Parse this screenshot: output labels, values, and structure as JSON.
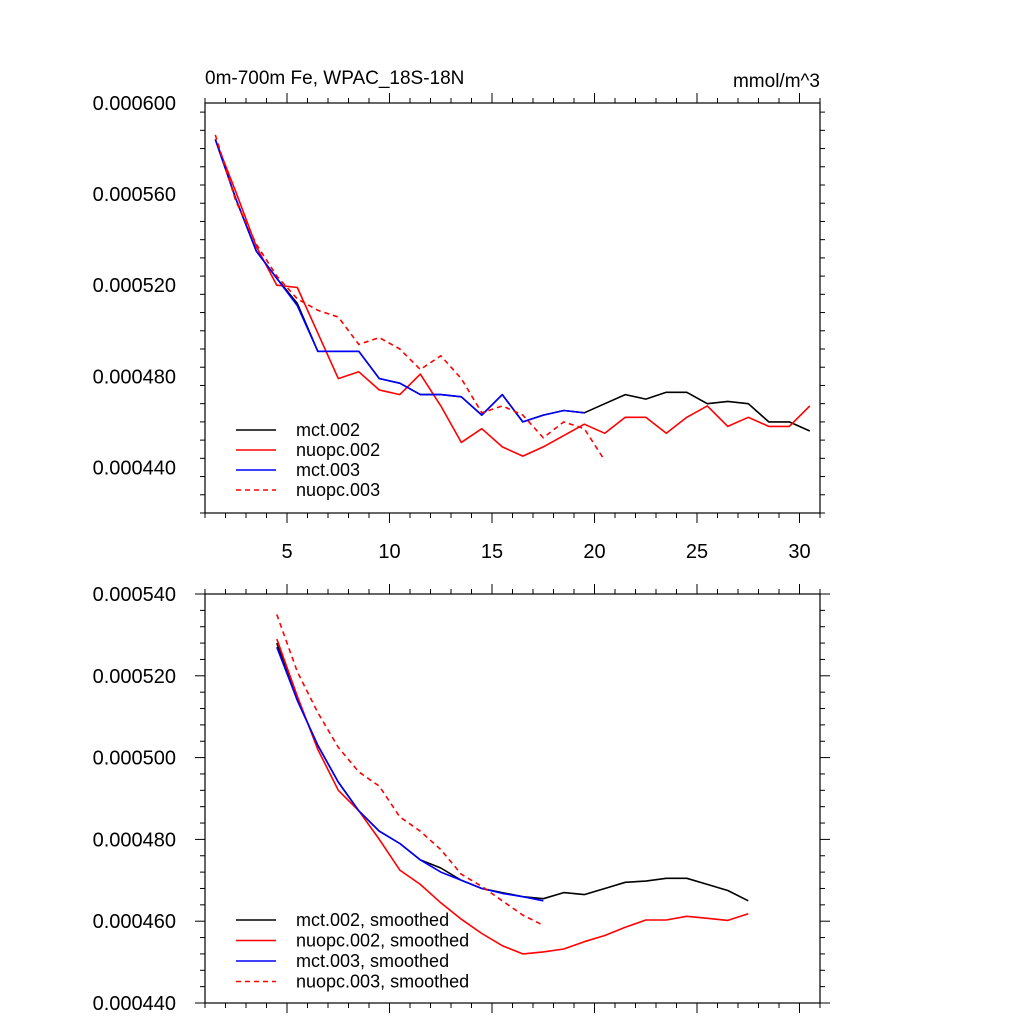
{
  "chart_data": [
    {
      "type": "line",
      "title": "0m-700m Fe, WPAC_18S-18N",
      "units": "mmol/m^3",
      "xlabel": "",
      "ylabel": "",
      "xlim": [
        1,
        31
      ],
      "ylim": [
        0.00042,
        0.0006
      ],
      "x_ticks": [
        5,
        10,
        15,
        20,
        25,
        30
      ],
      "x_tick_labels": [
        "5",
        "10",
        "15",
        "20",
        "25",
        "30"
      ],
      "y_ticks": [
        0.00044,
        0.00048,
        0.00052,
        0.00056,
        0.0006
      ],
      "y_tick_labels": [
        "0.000440",
        "0.000480",
        "0.000520",
        "0.000560",
        "0.000600"
      ],
      "legend_position": "bottom-left",
      "series": [
        {
          "name": "mct.002",
          "color": "#000000",
          "dash": "solid",
          "x": [
            1.5,
            2.5,
            3.5,
            4.5,
            5.5,
            6.5,
            7.5,
            8.5,
            9.5,
            10.5,
            11.5,
            12.5,
            13.5,
            14.5,
            15.5,
            16.5,
            17.5,
            18.5,
            19.5,
            20.5,
            21.5,
            22.5,
            23.5,
            24.5,
            25.5,
            26.5,
            27.5,
            28.5,
            29.5,
            30.5
          ],
          "y": [
            0.000584,
            0.000558,
            0.000535,
            0.000523,
            0.000512,
            0.000491,
            0.000491,
            0.000491,
            0.000479,
            0.000477,
            0.000472,
            0.000472,
            0.000471,
            0.000463,
            0.000472,
            0.00046,
            0.000463,
            0.000465,
            0.000464,
            0.000468,
            0.000472,
            0.00047,
            0.000473,
            0.000473,
            0.000468,
            0.000469,
            0.000468,
            0.00046,
            0.00046,
            0.000456
          ]
        },
        {
          "name": "nuopc.002",
          "color": "#ff0000",
          "dash": "solid",
          "x": [
            1.5,
            2.5,
            3.5,
            4.5,
            5.5,
            6.5,
            7.5,
            8.5,
            9.5,
            10.5,
            11.5,
            12.5,
            13.5,
            14.5,
            15.5,
            16.5,
            17.5,
            18.5,
            19.5,
            20.5,
            21.5,
            22.5,
            23.5,
            24.5,
            25.5,
            26.5,
            27.5,
            28.5,
            29.5,
            30.5
          ],
          "y": [
            0.000584,
            0.000561,
            0.000537,
            0.00052,
            0.000519,
            0.000499,
            0.000479,
            0.000482,
            0.000474,
            0.000472,
            0.000481,
            0.000467,
            0.000451,
            0.000457,
            0.000449,
            0.000445,
            0.000449,
            0.000454,
            0.000459,
            0.000455,
            0.000462,
            0.000462,
            0.000455,
            0.000462,
            0.000467,
            0.000458,
            0.000462,
            0.000458,
            0.000458,
            0.000467
          ]
        },
        {
          "name": "mct.003",
          "color": "#0000ff",
          "dash": "solid",
          "x": [
            1.5,
            2.5,
            3.5,
            4.5,
            5.5,
            6.5,
            7.5,
            8.5,
            9.5,
            10.5,
            11.5,
            12.5,
            13.5,
            14.5,
            15.5,
            16.5,
            17.5,
            18.5,
            19.5
          ],
          "y": [
            0.000584,
            0.000558,
            0.000535,
            0.000523,
            0.000511,
            0.000491,
            0.000491,
            0.000491,
            0.000479,
            0.000477,
            0.000472,
            0.000472,
            0.000471,
            0.000463,
            0.000472,
            0.00046,
            0.000463,
            0.000465,
            0.000464
          ]
        },
        {
          "name": "nuopc.003",
          "color": "#ff0000",
          "dash": "dashed",
          "x": [
            1.5,
            2.5,
            3.5,
            4.5,
            5.5,
            6.5,
            7.5,
            8.5,
            9.5,
            10.5,
            11.5,
            12.5,
            13.5,
            14.5,
            15.5,
            16.5,
            17.5,
            18.5,
            19.5,
            20.5
          ],
          "y": [
            0.000586,
            0.000557,
            0.000538,
            0.000524,
            0.000514,
            0.000509,
            0.000506,
            0.000494,
            0.000497,
            0.000492,
            0.000483,
            0.000489,
            0.000479,
            0.000464,
            0.000467,
            0.000463,
            0.000453,
            0.00046,
            0.000457,
            0.000443
          ]
        }
      ]
    },
    {
      "type": "line",
      "title": "",
      "xlabel": "",
      "ylabel": "",
      "xlim": [
        1,
        31
      ],
      "ylim": [
        0.00044,
        0.00054
      ],
      "x_ticks": [
        5,
        10,
        15,
        20,
        25,
        30
      ],
      "y_ticks": [
        0.00044,
        0.00046,
        0.00048,
        0.0005,
        0.00052,
        0.00054
      ],
      "y_tick_labels": [
        "0.000440",
        "0.000460",
        "0.000480",
        "0.000500",
        "0.000520",
        "0.000540"
      ],
      "legend_position": "bottom-left",
      "series": [
        {
          "name": "mct.002, smoothed",
          "color": "#000000",
          "dash": "solid",
          "x": [
            4.5,
            5.5,
            6.5,
            7.5,
            8.5,
            9.5,
            10.5,
            11.5,
            12.5,
            13.5,
            14.5,
            15.5,
            16.5,
            17.5,
            18.5,
            19.5,
            20.5,
            21.5,
            22.5,
            23.5,
            24.5,
            25.5,
            26.5,
            27.5
          ],
          "y": [
            0.000528,
            0.000514,
            0.000503,
            0.000494,
            0.000487,
            0.000482,
            0.000479,
            0.000475,
            0.000473,
            0.00047,
            0.000468,
            0.000467,
            0.000466,
            0.0004655,
            0.000467,
            0.0004665,
            0.000468,
            0.0004695,
            0.0004698,
            0.0004705,
            0.0004705,
            0.000469,
            0.0004675,
            0.000465
          ]
        },
        {
          "name": "nuopc.002, smoothed",
          "color": "#ff0000",
          "dash": "solid",
          "x": [
            4.5,
            5.5,
            6.5,
            7.5,
            8.5,
            9.5,
            10.5,
            11.5,
            12.5,
            13.5,
            14.5,
            15.5,
            16.5,
            17.5,
            18.5,
            19.5,
            20.5,
            21.5,
            22.5,
            23.5,
            24.5,
            25.5,
            26.5,
            27.5
          ],
          "y": [
            0.000529,
            0.000515,
            0.000502,
            0.000492,
            0.000487,
            0.00048,
            0.0004725,
            0.000469,
            0.0004645,
            0.0004605,
            0.000457,
            0.000454,
            0.000452,
            0.0004525,
            0.0004532,
            0.000455,
            0.0004565,
            0.0004585,
            0.0004603,
            0.0004603,
            0.0004612,
            0.0004607,
            0.0004602,
            0.0004618
          ]
        },
        {
          "name": "mct.003, smoothed",
          "color": "#0000ff",
          "dash": "solid",
          "x": [
            4.5,
            5.5,
            6.5,
            7.5,
            8.5,
            9.5,
            10.5,
            11.5,
            12.5,
            13.5,
            14.5,
            15.5,
            16.5,
            17.5
          ],
          "y": [
            0.000527,
            0.000514,
            0.000503,
            0.000494,
            0.000487,
            0.000482,
            0.000479,
            0.000475,
            0.000472,
            0.00047,
            0.000468,
            0.0004668,
            0.000466,
            0.000465
          ]
        },
        {
          "name": "nuopc.003, smoothed",
          "color": "#ff0000",
          "dash": "dashed",
          "x": [
            4.5,
            5.5,
            6.5,
            7.5,
            8.5,
            9.5,
            10.5,
            11.5,
            12.5,
            13.5,
            14.5,
            15.5,
            16.5,
            17.5
          ],
          "y": [
            0.000535,
            0.000521,
            0.000511,
            0.0005025,
            0.0004965,
            0.000493,
            0.0004855,
            0.000482,
            0.0004775,
            0.0004715,
            0.0004685,
            0.000465,
            0.0004615,
            0.000459
          ]
        }
      ]
    }
  ]
}
